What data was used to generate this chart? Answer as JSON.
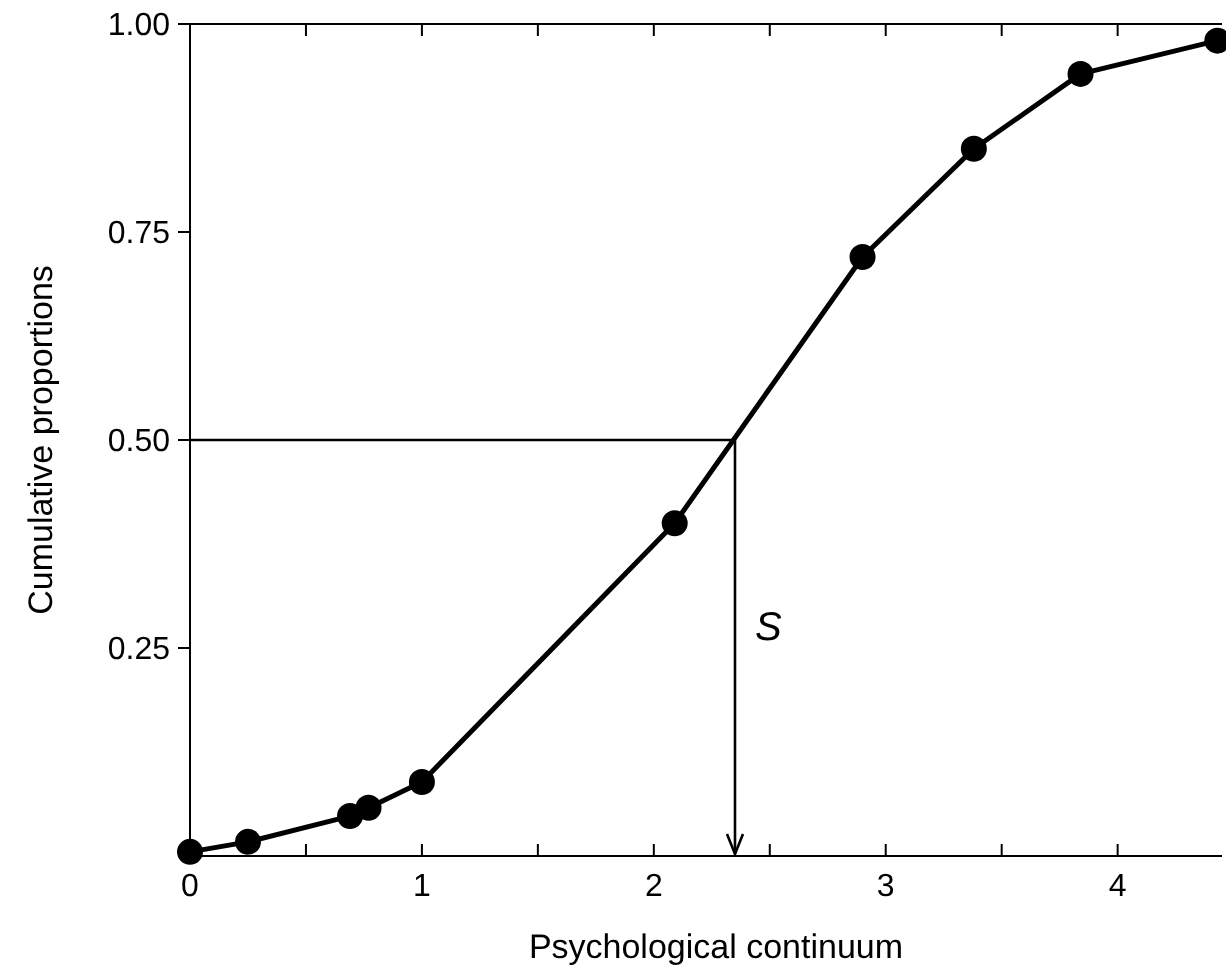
{
  "chart_data": {
    "type": "line",
    "xlabel": "Psychological continuum",
    "ylabel": "Cumulative proportions",
    "x": [
      0,
      0.25,
      0.69,
      0.77,
      1.0,
      2.09,
      2.9,
      3.38,
      3.84,
      4.43
    ],
    "series": [
      {
        "color": "#000000",
        "values": [
          0.005,
          0.017,
          0.048,
          0.058,
          0.089,
          0.4,
          0.72,
          0.85,
          0.94,
          0.98
        ]
      }
    ],
    "marker": "circle",
    "line_style": "solid",
    "grid": false,
    "xlim": [
      0,
      4.45
    ],
    "ylim": [
      0,
      1
    ],
    "xticks": [
      0,
      {
        "value": 0.5,
        "label": null
      },
      1,
      {
        "value": 1.5,
        "label": null
      },
      2,
      {
        "value": 2.5,
        "label": null
      },
      3,
      {
        "value": 3.5,
        "label": null
      },
      4
    ],
    "yticks": [
      {
        "value": 0.25,
        "label": "0.25"
      },
      {
        "value": 0.5,
        "label": "0.50"
      },
      {
        "value": 0.75,
        "label": "0.75"
      },
      {
        "value": 1,
        "label": "1.00"
      }
    ],
    "ref_lines": [
      {
        "axis": "y",
        "value": 0.5,
        "color": "#000000"
      },
      {
        "axis": "x",
        "value": 2.35,
        "label": "S",
        "color": "#000000"
      }
    ]
  }
}
